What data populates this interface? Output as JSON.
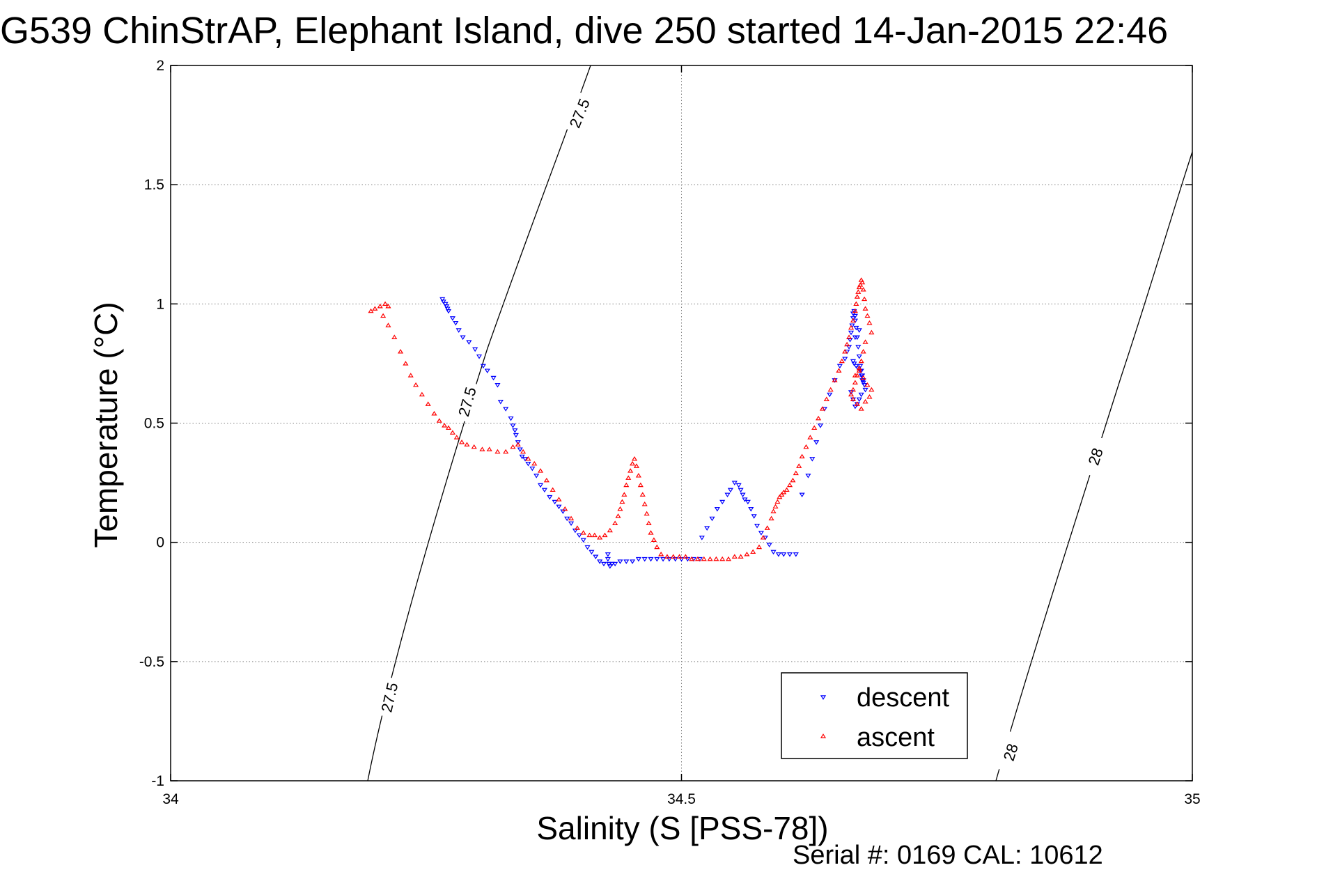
{
  "chart_data": {
    "type": "scatter",
    "title": "G539 ChinStrAP, Elephant Island, dive 250 started 14-Jan-2015 22:46",
    "xlabel": "Salinity (S [PSS-78])",
    "ylabel": "Temperature (°C)",
    "xlim": [
      34,
      35
    ],
    "ylim": [
      -1,
      2
    ],
    "xticks": [
      34,
      34.5,
      35
    ],
    "yticks": [
      -1,
      -0.5,
      0,
      0.5,
      1,
      1.5,
      2
    ],
    "xtick_labels": [
      "34",
      "34.5",
      "35"
    ],
    "ytick_labels": [
      "-1",
      "-0.5",
      "0",
      "0.5",
      "1",
      "1.5",
      "2"
    ],
    "grid": true,
    "legend": {
      "position": "bottom-right",
      "entries": [
        "descent",
        "ascent"
      ]
    },
    "footer": "Serial #: 0169 CAL: 10612",
    "colors": {
      "descent": "#0000ff",
      "ascent": "#ff0000",
      "contour": "#000000",
      "grid": "#808080"
    },
    "series": [
      {
        "name": "descent",
        "marker": "triangle-down",
        "color": "#0000ff",
        "x": [
          34.266,
          34.267,
          34.269,
          34.27,
          34.271,
          34.272,
          34.276,
          34.279,
          34.282,
          34.286,
          34.292,
          34.298,
          34.302,
          34.306,
          34.31,
          34.316,
          34.32,
          34.323,
          34.328,
          34.333,
          34.335,
          34.337,
          34.338,
          34.34,
          34.342,
          34.344,
          34.347,
          34.35,
          34.354,
          34.358,
          34.362,
          34.366,
          34.371,
          34.376,
          34.38,
          34.384,
          34.388,
          34.392,
          34.396,
          34.4,
          34.404,
          34.408,
          34.412,
          34.416,
          34.42,
          34.424,
          34.428,
          34.428,
          34.429,
          34.43,
          34.432,
          34.435,
          34.44,
          34.446,
          34.452,
          34.458,
          34.464,
          34.47,
          34.476,
          34.482,
          34.488,
          34.494,
          34.5,
          34.506,
          34.512,
          34.518,
          34.52,
          34.525,
          34.53,
          34.535,
          34.54,
          34.545,
          34.548,
          34.552,
          34.556,
          34.558,
          34.56,
          34.562,
          34.565,
          34.568,
          34.571,
          34.574,
          34.578,
          34.582,
          34.586,
          34.59,
          34.595,
          34.6,
          34.606,
          34.612,
          34.618,
          34.624,
          34.628,
          34.632,
          34.636,
          34.64,
          34.645,
          34.65,
          34.655,
          34.66,
          34.662,
          34.664,
          34.665,
          34.666,
          34.667,
          34.668,
          34.668,
          34.669,
          34.67,
          34.67,
          34.671,
          34.672,
          34.673,
          34.674,
          34.675,
          34.676,
          34.677,
          34.678,
          34.679,
          34.68,
          34.668,
          34.669,
          34.671,
          34.673,
          34.675,
          34.676,
          34.677,
          34.678,
          34.676,
          34.674,
          34.672,
          34.67,
          34.668,
          34.666,
          34.67,
          34.674
        ],
        "y": [
          1.02,
          1.01,
          1.0,
          0.99,
          0.98,
          0.97,
          0.94,
          0.92,
          0.89,
          0.86,
          0.84,
          0.81,
          0.78,
          0.74,
          0.72,
          0.69,
          0.66,
          0.59,
          0.56,
          0.52,
          0.49,
          0.47,
          0.45,
          0.42,
          0.39,
          0.36,
          0.35,
          0.33,
          0.31,
          0.28,
          0.24,
          0.22,
          0.19,
          0.17,
          0.15,
          0.13,
          0.1,
          0.08,
          0.05,
          0.03,
          0.01,
          -0.02,
          -0.04,
          -0.06,
          -0.08,
          -0.09,
          -0.05,
          -0.07,
          -0.09,
          -0.1,
          -0.09,
          -0.09,
          -0.08,
          -0.08,
          -0.08,
          -0.07,
          -0.07,
          -0.07,
          -0.07,
          -0.07,
          -0.07,
          -0.07,
          -0.07,
          -0.07,
          -0.07,
          -0.07,
          0.02,
          0.06,
          0.1,
          0.14,
          0.17,
          0.2,
          0.22,
          0.25,
          0.24,
          0.22,
          0.2,
          0.18,
          0.17,
          0.14,
          0.11,
          0.07,
          0.04,
          0.02,
          -0.01,
          -0.04,
          -0.05,
          -0.05,
          -0.05,
          -0.05,
          0.2,
          0.28,
          0.35,
          0.42,
          0.49,
          0.56,
          0.62,
          0.68,
          0.74,
          0.77,
          0.8,
          0.82,
          0.85,
          0.88,
          0.91,
          0.94,
          0.96,
          0.97,
          0.95,
          0.93,
          0.9,
          0.86,
          0.82,
          0.78,
          0.74,
          0.72,
          0.7,
          0.68,
          0.66,
          0.64,
          0.76,
          0.75,
          0.74,
          0.73,
          0.72,
          0.7,
          0.68,
          0.67,
          0.62,
          0.6,
          0.58,
          0.57,
          0.6,
          0.63,
          0.86,
          0.89
        ]
      },
      {
        "name": "ascent",
        "marker": "triangle-up",
        "color": "#ff0000",
        "x": [
          34.196,
          34.2,
          34.205,
          34.21,
          34.213,
          34.208,
          34.213,
          34.219,
          34.225,
          34.23,
          34.235,
          34.24,
          34.246,
          34.252,
          34.258,
          34.263,
          34.268,
          34.272,
          34.276,
          34.28,
          34.285,
          34.29,
          34.297,
          34.305,
          34.312,
          34.32,
          34.328,
          34.335,
          34.34,
          34.345,
          34.35,
          34.356,
          34.362,
          34.368,
          34.374,
          34.38,
          34.386,
          34.392,
          34.398,
          34.404,
          34.41,
          34.415,
          34.42,
          34.425,
          34.43,
          34.435,
          34.438,
          34.44,
          34.442,
          34.444,
          34.446,
          34.448,
          34.45,
          34.452,
          34.454,
          34.456,
          34.458,
          34.46,
          34.462,
          34.464,
          34.466,
          34.468,
          34.47,
          34.473,
          34.476,
          34.48,
          34.486,
          34.492,
          34.498,
          34.504,
          34.51,
          34.516,
          34.522,
          34.528,
          34.534,
          34.54,
          34.546,
          34.552,
          34.558,
          34.564,
          34.57,
          34.576,
          34.58,
          34.584,
          34.588,
          34.59,
          34.592,
          34.594,
          34.596,
          34.598,
          34.6,
          34.603,
          34.606,
          34.609,
          34.612,
          34.615,
          34.618,
          34.622,
          34.626,
          34.63,
          34.634,
          34.638,
          34.642,
          34.646,
          34.65,
          34.654,
          34.657,
          34.66,
          34.662,
          34.664,
          34.666,
          34.668,
          34.67,
          34.671,
          34.672,
          34.673,
          34.674,
          34.675,
          34.676,
          34.677,
          34.678,
          34.679,
          34.68,
          34.682,
          34.684,
          34.686,
          34.68,
          34.678,
          34.676,
          34.674,
          34.672,
          34.67,
          34.668,
          34.666,
          34.668,
          34.672,
          34.676,
          34.68,
          34.684,
          34.686,
          34.682,
          34.678,
          34.674,
          34.67
        ],
        "y": [
          0.97,
          0.98,
          0.99,
          1.0,
          0.99,
          0.95,
          0.91,
          0.86,
          0.8,
          0.75,
          0.7,
          0.66,
          0.62,
          0.58,
          0.54,
          0.51,
          0.49,
          0.48,
          0.46,
          0.44,
          0.42,
          0.41,
          0.4,
          0.39,
          0.39,
          0.38,
          0.38,
          0.4,
          0.41,
          0.38,
          0.35,
          0.33,
          0.3,
          0.26,
          0.22,
          0.18,
          0.14,
          0.1,
          0.06,
          0.04,
          0.03,
          0.03,
          0.02,
          0.03,
          0.05,
          0.08,
          0.11,
          0.14,
          0.17,
          0.2,
          0.24,
          0.27,
          0.3,
          0.33,
          0.35,
          0.32,
          0.28,
          0.24,
          0.2,
          0.16,
          0.12,
          0.08,
          0.04,
          0.01,
          -0.02,
          -0.05,
          -0.06,
          -0.06,
          -0.06,
          -0.06,
          -0.07,
          -0.07,
          -0.07,
          -0.07,
          -0.07,
          -0.07,
          -0.07,
          -0.06,
          -0.06,
          -0.05,
          -0.04,
          -0.02,
          0.02,
          0.06,
          0.1,
          0.13,
          0.15,
          0.17,
          0.19,
          0.2,
          0.21,
          0.22,
          0.24,
          0.26,
          0.29,
          0.32,
          0.36,
          0.4,
          0.44,
          0.48,
          0.52,
          0.56,
          0.6,
          0.64,
          0.68,
          0.72,
          0.76,
          0.8,
          0.83,
          0.86,
          0.9,
          0.93,
          0.97,
          1.0,
          1.03,
          1.05,
          1.07,
          1.08,
          1.1,
          1.09,
          1.06,
          1.02,
          0.98,
          0.95,
          0.92,
          0.88,
          0.84,
          0.8,
          0.76,
          0.73,
          0.7,
          0.67,
          0.64,
          0.62,
          0.6,
          0.58,
          0.56,
          0.59,
          0.61,
          0.64,
          0.66,
          0.69,
          0.72,
          0.7
        ]
      }
    ],
    "contours": [
      {
        "label": "27.5",
        "label_positions": [
          [
            34.4,
            1.8
          ],
          [
            34.29,
            0.59
          ],
          [
            34.214,
            -0.65
          ]
        ]
      },
      {
        "label": "28",
        "label_positions": [
          [
            34.905,
            0.36
          ],
          [
            34.822,
            -0.88
          ]
        ]
      }
    ]
  }
}
